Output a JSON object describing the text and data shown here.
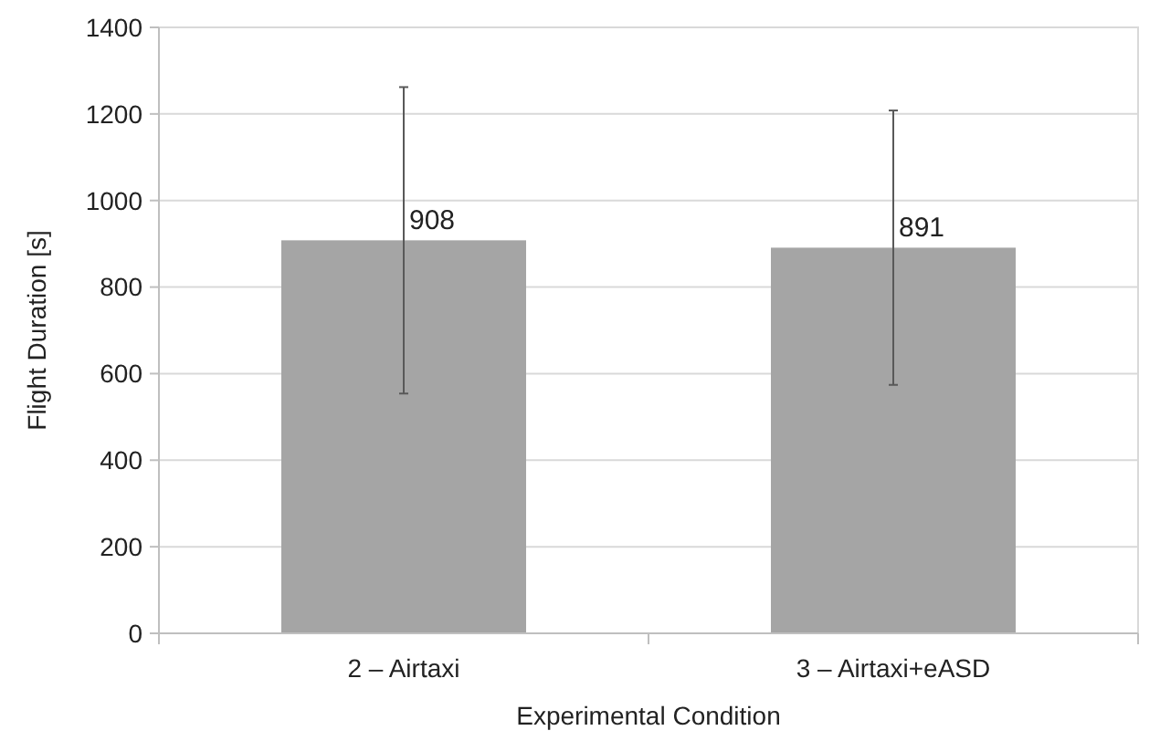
{
  "chart_data": {
    "type": "bar",
    "xlabel": "Experimental Condition",
    "ylabel": "Flight Duration [s]",
    "categories": [
      "2 – Airtaxi",
      "3 – Airtaxi+eASD"
    ],
    "values": [
      908,
      891
    ],
    "errors": [
      354,
      317
    ],
    "color": "#a5a5a5",
    "ylim": [
      0,
      1400
    ],
    "yticks": [
      0,
      200,
      400,
      600,
      800,
      1000,
      1200,
      1400
    ],
    "grid": "y",
    "data_labels": true
  }
}
